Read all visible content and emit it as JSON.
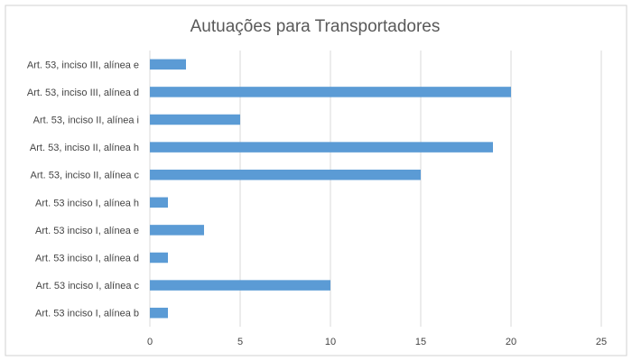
{
  "chart_data": {
    "type": "bar",
    "orientation": "horizontal",
    "title": "Autuações para Transportadores",
    "xlabel": "",
    "ylabel": "",
    "xlim": [
      0,
      25
    ],
    "x_ticks": [
      0,
      5,
      10,
      15,
      20,
      25
    ],
    "grid": true,
    "legend": "none",
    "bar_color": "#5b9bd5",
    "categories": [
      "Art. 53, inciso III, alínea e",
      "Art. 53, inciso III, alínea d",
      "Art. 53, inciso II, alínea i",
      "Art. 53, inciso II, alínea h",
      "Art. 53, inciso II, alínea c",
      "Art. 53 inciso I, alínea h",
      "Art. 53 inciso I, alínea e",
      "Art. 53 inciso I, alínea d",
      "Art. 53 inciso I, alínea c",
      "Art. 53 inciso I, alínea b"
    ],
    "values": [
      2,
      20,
      5,
      19,
      15,
      1,
      3,
      1,
      10,
      1
    ]
  }
}
